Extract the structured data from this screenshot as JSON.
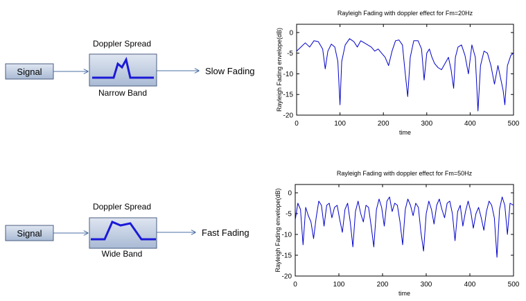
{
  "colors": {
    "box_fill_top": "#dfe6f1",
    "box_fill_bottom": "#a9bad4",
    "box_stroke": "#4a5d80",
    "spectrum": "#1a1ad6",
    "arrow": "#4a6fa5",
    "trace": "#0000c8"
  },
  "rows": [
    {
      "signal_label": "Signal",
      "doppler_title": "Doppler Spread",
      "band_label": "Narrow Band",
      "fading_label": "Slow Fading"
    },
    {
      "signal_label": "Signal",
      "doppler_title": "Doppler Spread",
      "band_label": "Wide Band",
      "fading_label": "Fast Fading"
    }
  ],
  "chart_data": [
    {
      "type": "line",
      "title": "Rayleigh Fading with doppler effect for Fm=20Hz",
      "xlabel": "time",
      "ylabel": "Rayleigh Fading envelope(dB)",
      "xlim": [
        0,
        500
      ],
      "ylim": [
        -20,
        2
      ],
      "xticks": [
        "0",
        "100",
        "200",
        "300",
        "400",
        "500"
      ],
      "yticks": [
        "0",
        "-5",
        "-10",
        "-15",
        "-20"
      ],
      "grid": false,
      "series": [
        {
          "x": [
            0,
            10,
            20,
            30,
            40,
            50,
            60,
            66,
            72,
            80,
            88,
            95,
            100,
            104,
            112,
            122,
            132,
            140,
            148,
            156,
            164,
            172,
            180,
            188,
            196,
            204,
            212,
            220,
            228,
            236,
            244,
            250,
            256,
            262,
            270,
            280,
            288,
            294,
            300,
            306,
            312,
            318,
            326,
            334,
            342,
            350,
            356,
            362,
            366,
            372,
            380,
            388,
            396,
            404,
            412,
            418,
            424,
            432,
            440,
            448,
            456,
            464,
            472,
            476,
            480,
            486,
            494,
            500
          ],
          "y": [
            -4.5,
            -3.5,
            -2.5,
            -3.5,
            -2.0,
            -2.2,
            -4.0,
            -8.8,
            -4.5,
            -2.8,
            -3.5,
            -7.0,
            -17.5,
            -7.0,
            -3.0,
            -1.5,
            -2.2,
            -3.5,
            -2.0,
            -2.5,
            -3.0,
            -3.5,
            -4.5,
            -4.0,
            -5.0,
            -6.0,
            -8.0,
            -4.5,
            -2.0,
            -1.8,
            -3.0,
            -9.5,
            -15.5,
            -6.0,
            -2.0,
            -2.0,
            -4.0,
            -11.5,
            -5.0,
            -4.0,
            -6.0,
            -7.5,
            -8.5,
            -9.0,
            -7.5,
            -6.0,
            -9.0,
            -13.5,
            -6.0,
            -3.5,
            -3.0,
            -5.5,
            -10.0,
            -3.0,
            -6.0,
            -19.0,
            -8.0,
            -4.5,
            -5.0,
            -8.0,
            -12.5,
            -8.0,
            -12.0,
            -14.0,
            -17.5,
            -8.0,
            -5.5,
            -5.0
          ]
        }
      ]
    },
    {
      "type": "line",
      "title": "Rayleigh Fading with doppler effect for Fm=50Hz",
      "xlabel": "time",
      "ylabel": "Rayleigh Fading envelope(dB)",
      "xlim": [
        0,
        500
      ],
      "ylim": [
        -20,
        2
      ],
      "xticks": [
        "0",
        "100",
        "200",
        "300",
        "400",
        "500"
      ],
      "yticks": [
        "0",
        "-5",
        "-10",
        "-15",
        "-20"
      ],
      "grid": false,
      "series": [
        {
          "x": [
            0,
            6,
            12,
            18,
            24,
            30,
            36,
            42,
            48,
            54,
            60,
            66,
            72,
            78,
            84,
            90,
            96,
            102,
            108,
            114,
            120,
            126,
            132,
            138,
            144,
            150,
            156,
            162,
            168,
            174,
            180,
            186,
            192,
            198,
            204,
            210,
            216,
            222,
            228,
            234,
            240,
            246,
            252,
            258,
            264,
            270,
            276,
            282,
            288,
            294,
            300,
            306,
            312,
            318,
            324,
            330,
            336,
            342,
            348,
            354,
            360,
            366,
            372,
            378,
            384,
            390,
            396,
            402,
            408,
            414,
            420,
            426,
            432,
            438,
            444,
            450,
            456,
            462,
            468,
            474,
            480,
            486,
            492,
            500
          ],
          "y": [
            -6.5,
            -2.5,
            -4.0,
            -12.5,
            -3.5,
            -5.5,
            -7.0,
            -11.0,
            -6.0,
            -2.0,
            -3.0,
            -8.0,
            -3.0,
            -2.5,
            -6.0,
            -3.5,
            -3.0,
            -6.5,
            -9.5,
            -4.0,
            -2.5,
            -7.0,
            -13.0,
            -4.5,
            -2.0,
            -5.0,
            -7.0,
            -3.0,
            -3.5,
            -8.0,
            -13.0,
            -4.0,
            -1.5,
            -3.5,
            -8.0,
            -2.0,
            -1.0,
            -4.5,
            -2.5,
            -3.0,
            -7.0,
            -12.5,
            -4.0,
            -1.5,
            -3.0,
            -5.5,
            -2.5,
            -3.5,
            -9.5,
            -14.0,
            -5.0,
            -2.0,
            -4.0,
            -7.5,
            -3.0,
            -1.5,
            -4.0,
            -6.0,
            -2.5,
            -2.0,
            -5.0,
            -11.5,
            -4.5,
            -3.0,
            -8.0,
            -4.5,
            -2.0,
            -4.5,
            -8.5,
            -5.0,
            -3.5,
            -6.0,
            -9.0,
            -4.5,
            -2.0,
            -3.0,
            -6.0,
            -15.5,
            -4.0,
            -1.0,
            -3.0,
            -10.0,
            -2.5,
            -3.0
          ]
        }
      ]
    }
  ]
}
